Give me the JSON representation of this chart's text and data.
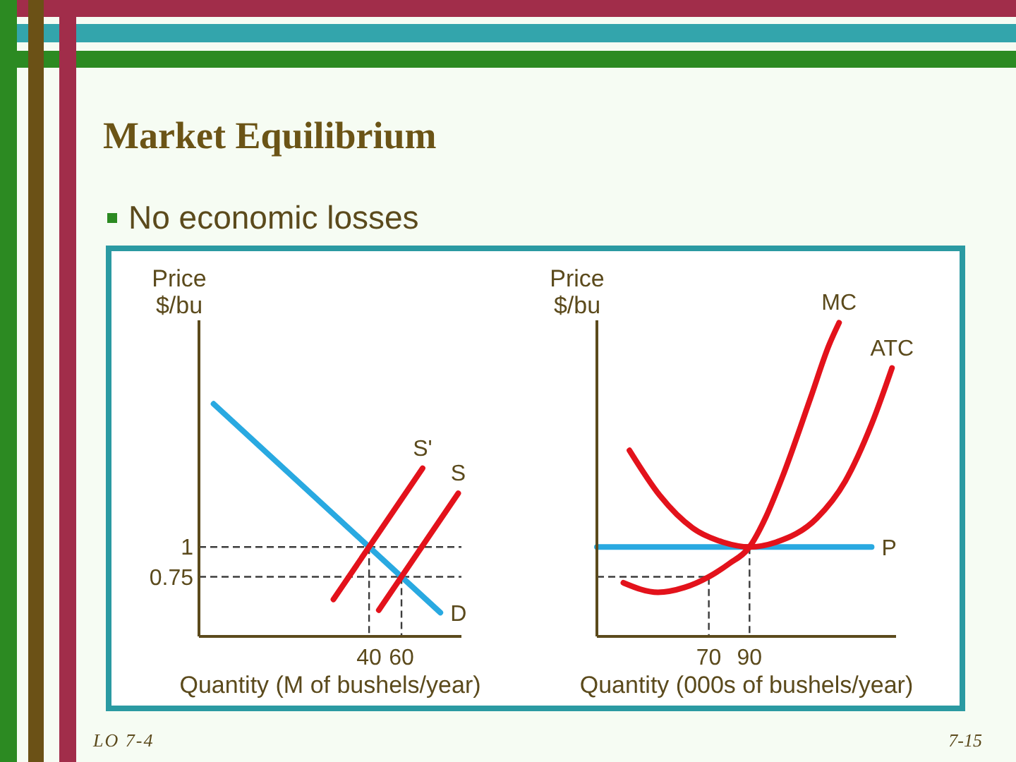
{
  "chart_data": [
    {
      "type": "line",
      "title": "Market Equilibrium",
      "subtitle": "No economic losses",
      "ylabel": "Price\n$/bu",
      "xlabel": "Quantity (M of bushels/year)",
      "xlim": [
        -65,
        97
      ],
      "ylim": [
        0.25,
        2.9
      ],
      "xticks": [
        40,
        60
      ],
      "yticks": [
        1,
        0.75
      ],
      "ref_lines": [
        {
          "axis": "y",
          "value": 1,
          "color": "#3c3c3c",
          "line_style": "dashed"
        },
        {
          "axis": "y",
          "value": 0.75,
          "color": "#3c3c3c",
          "line_style": "dashed"
        }
      ],
      "series": [
        {
          "color": "#3c3c3c",
          "line_style": "dashed",
          "x": [
            40,
            40
          ],
          "values": [
            1,
            0.25
          ]
        },
        {
          "color": "#3c3c3c",
          "line_style": "dashed",
          "x": [
            60,
            60
          ],
          "values": [
            0.75,
            0.25
          ]
        },
        {
          "name": "D",
          "color": "#29a9e1",
          "x": [
            -56,
            84
          ],
          "values": [
            2.2,
            0.45
          ]
        },
        {
          "name": "S'",
          "color": "#e3121b",
          "x": [
            18,
            73
          ],
          "values": [
            0.56,
            1.66
          ]
        },
        {
          "name": "S",
          "color": "#e3121b",
          "x": [
            46,
            95
          ],
          "values": [
            0.47,
            1.45
          ]
        }
      ],
      "annotations": [
        "LO 7-4"
      ]
    },
    {
      "type": "line",
      "ylabel": "Price\n$/bu",
      "xlabel": "Quantity (000s of bushels/year)",
      "xlim": [
        15,
        162
      ],
      "ylim": [
        0.25,
        2.9
      ],
      "xticks": [
        70,
        90
      ],
      "tick_labels": "x",
      "series": [
        {
          "color": "#3c3c3c",
          "line_style": "dashed",
          "x": [
            15,
            70,
            70
          ],
          "values": [
            0.75,
            0.75,
            0.25
          ]
        },
        {
          "color": "#3c3c3c",
          "line_style": "dashed",
          "x": [
            90,
            90
          ],
          "values": [
            1,
            0.25
          ]
        },
        {
          "name": "P",
          "color": "#29a9e1",
          "x": [
            15,
            150
          ],
          "values": [
            1,
            1
          ]
        },
        {
          "name": "MC",
          "color": "#e3121b",
          "x": [
            28,
            45,
            58,
            70,
            80,
            90,
            98,
            106,
            120,
            129,
            134
          ],
          "values": [
            0.7,
            0.62,
            0.66,
            0.75,
            0.86,
            1,
            1.25,
            1.58,
            2.25,
            2.69,
            2.88
          ]
        },
        {
          "name": "ATC",
          "color": "#e3121b",
          "x": [
            31,
            46,
            62,
            77,
            90,
            103,
            123,
            137,
            150,
            160
          ],
          "values": [
            1.81,
            1.43,
            1.16,
            1.04,
            1,
            1.04,
            1.24,
            1.55,
            2.03,
            2.5
          ]
        }
      ],
      "annotations": [
        "7-15"
      ]
    }
  ]
}
